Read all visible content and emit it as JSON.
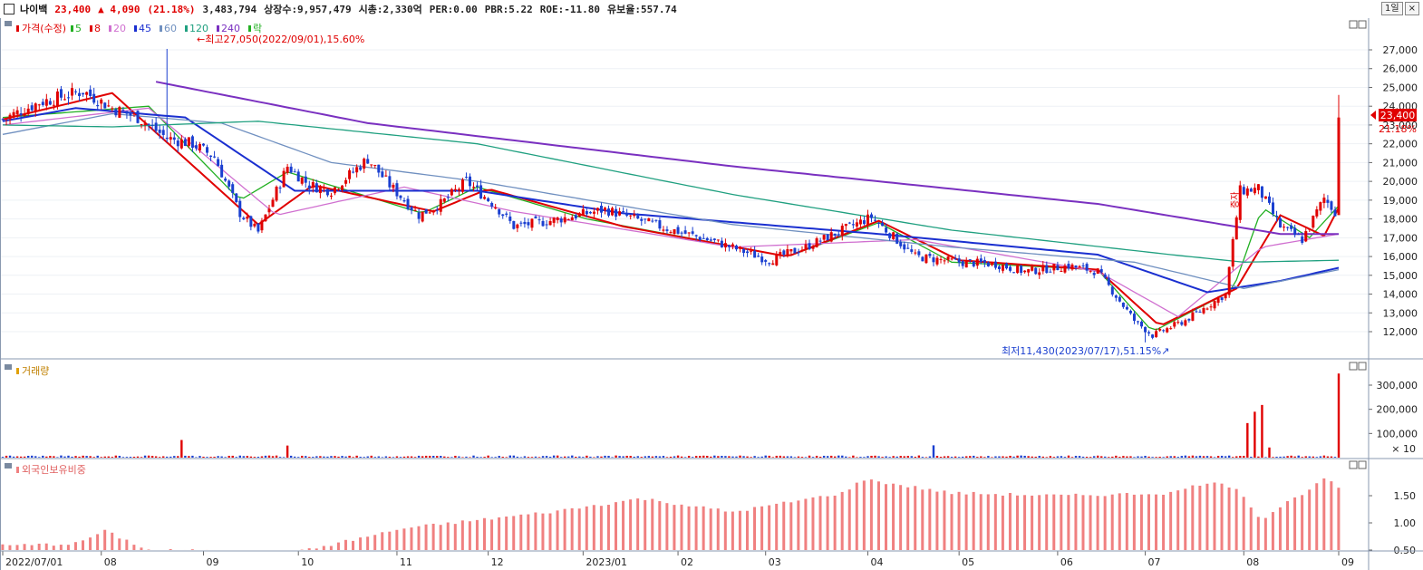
{
  "header": {
    "name": "나이백",
    "price": "23,400",
    "change": "▲  4,090",
    "change_pct": "(21.18%)",
    "volume": "3,483,794",
    "listed": "상장수:9,957,479",
    "mcap": "시총:2,330억",
    "per": "PER:0.00",
    "pbr": "PBR:5.22",
    "roe": "ROE:-11.80",
    "reserve": "유보율:557.74",
    "period_button": "1일",
    "close_button": "×"
  },
  "legend": {
    "price_label": "가격(수정)",
    "ma": [
      "5",
      "8",
      "20",
      "45",
      "60",
      "120",
      "240"
    ],
    "ma_colors": [
      "#22b022",
      "#e00000",
      "#d070d0",
      "#1a2fd0",
      "#7090c0",
      "#20a080",
      "#7a30c0"
    ],
    "extra": "락",
    "volume_label": "거래량",
    "foreign_label": "외국인보유비중"
  },
  "annotations": {
    "high": "최고27,050(2022/09/01),15.60%",
    "low": "최저11,430(2023/07/17),51.15%",
    "last_price": "23,400",
    "last_pct": "21.18%",
    "marker": "증자"
  },
  "price_axis": [
    "27,000",
    "26,000",
    "25,000",
    "24,000",
    "23,000",
    "22,000",
    "21,000",
    "20,000",
    "19,000",
    "18,000",
    "17,000",
    "16,000",
    "15,000",
    "14,000",
    "13,000",
    "12,000"
  ],
  "volume_axis": [
    "300,000",
    "200,000",
    "100,000",
    "× 10"
  ],
  "foreign_axis": [
    "1.50",
    "1.00",
    "0.50"
  ],
  "x_axis": [
    "2022/07/01",
    "08",
    "09",
    "10",
    "11",
    "12",
    "2023/01",
    "02",
    "03",
    "04",
    "05",
    "06",
    "07",
    "08",
    "09"
  ],
  "colors": {
    "up": "#e00000",
    "down": "#1a3fd0",
    "foreign": "#f08080",
    "grid": "#d8dde6"
  },
  "chart_data": {
    "type": "candlestick",
    "x_range": [
      "2022/07/01",
      "2023/09"
    ],
    "ylim": [
      11000,
      27800
    ],
    "high": {
      "value": 27050,
      "date": "2022/09/01"
    },
    "low": {
      "value": 11430,
      "date": "2023/07/17"
    },
    "close_keypoints": [
      [
        0,
        23300
      ],
      [
        10,
        24200
      ],
      [
        22,
        24800
      ],
      [
        30,
        23900
      ],
      [
        37,
        23400
      ],
      [
        45,
        22300
      ],
      [
        52,
        22000
      ],
      [
        58,
        21300
      ],
      [
        65,
        18300
      ],
      [
        70,
        17300
      ],
      [
        78,
        20800
      ],
      [
        84,
        19800
      ],
      [
        90,
        19500
      ],
      [
        100,
        21200
      ],
      [
        106,
        19800
      ],
      [
        114,
        18200
      ],
      [
        120,
        18800
      ],
      [
        127,
        20000
      ],
      [
        135,
        18700
      ],
      [
        140,
        17600
      ],
      [
        150,
        17900
      ],
      [
        165,
        18500
      ],
      [
        180,
        17600
      ],
      [
        195,
        16800
      ],
      [
        210,
        15800
      ],
      [
        220,
        16500
      ],
      [
        230,
        17400
      ],
      [
        238,
        18100
      ],
      [
        250,
        16000
      ],
      [
        262,
        15700
      ],
      [
        272,
        15600
      ],
      [
        280,
        15200
      ],
      [
        292,
        15500
      ],
      [
        300,
        15200
      ],
      [
        310,
        12600
      ],
      [
        315,
        11800
      ],
      [
        324,
        12600
      ],
      [
        335,
        14000
      ],
      [
        339,
        19500
      ],
      [
        344,
        19600
      ],
      [
        350,
        17600
      ],
      [
        356,
        16900
      ],
      [
        362,
        19100
      ],
      [
        365,
        18400
      ],
      [
        366,
        23400
      ]
    ],
    "volume_spikes": [
      [
        49,
        73000
      ],
      [
        78,
        50000
      ],
      [
        255,
        51000
      ],
      [
        341,
        143000
      ],
      [
        343,
        190000
      ],
      [
        345,
        218000
      ],
      [
        347,
        42000
      ],
      [
        366,
        348000
      ]
    ],
    "ma_series": {
      "5": [
        [
          0,
          23400
        ],
        [
          40,
          24000
        ],
        [
          65,
          19000
        ],
        [
          78,
          20500
        ],
        [
          115,
          18300
        ],
        [
          130,
          19700
        ],
        [
          160,
          18000
        ],
        [
          215,
          16000
        ],
        [
          240,
          17800
        ],
        [
          260,
          15700
        ],
        [
          300,
          15300
        ],
        [
          315,
          12000
        ],
        [
          337,
          14200
        ],
        [
          345,
          18600
        ],
        [
          358,
          17000
        ],
        [
          366,
          18700
        ]
      ],
      "8": [
        [
          0,
          23300
        ],
        [
          30,
          24700
        ],
        [
          70,
          17700
        ],
        [
          85,
          19800
        ],
        [
          118,
          18400
        ],
        [
          133,
          19600
        ],
        [
          170,
          17600
        ],
        [
          215,
          16000
        ],
        [
          240,
          17900
        ],
        [
          262,
          15800
        ],
        [
          300,
          15300
        ],
        [
          317,
          12300
        ],
        [
          338,
          14300
        ],
        [
          350,
          18200
        ],
        [
          362,
          17100
        ],
        [
          366,
          18600
        ]
      ],
      "20": [
        [
          0,
          23000
        ],
        [
          40,
          23900
        ],
        [
          75,
          18200
        ],
        [
          110,
          19700
        ],
        [
          140,
          18400
        ],
        [
          200,
          16500
        ],
        [
          250,
          16900
        ],
        [
          300,
          15200
        ],
        [
          322,
          12800
        ],
        [
          345,
          16500
        ],
        [
          366,
          17200
        ]
      ],
      "45": [
        [
          0,
          23200
        ],
        [
          20,
          23900
        ],
        [
          50,
          23400
        ],
        [
          80,
          19500
        ],
        [
          130,
          19500
        ],
        [
          170,
          18300
        ],
        [
          240,
          17200
        ],
        [
          300,
          16100
        ],
        [
          330,
          14100
        ],
        [
          350,
          14700
        ],
        [
          366,
          15400
        ]
      ],
      "60": [
        [
          0,
          22500
        ],
        [
          30,
          23600
        ],
        [
          60,
          23100
        ],
        [
          90,
          21000
        ],
        [
          130,
          20000
        ],
        [
          200,
          17700
        ],
        [
          260,
          16500
        ],
        [
          310,
          15700
        ],
        [
          340,
          14300
        ],
        [
          366,
          15300
        ]
      ],
      "120": [
        [
          0,
          23000
        ],
        [
          30,
          22900
        ],
        [
          70,
          23200
        ],
        [
          130,
          22000
        ],
        [
          200,
          19300
        ],
        [
          260,
          17400
        ],
        [
          320,
          16100
        ],
        [
          340,
          15700
        ],
        [
          366,
          15800
        ]
      ],
      "240": [
        [
          42,
          25300
        ],
        [
          100,
          23100
        ],
        [
          200,
          20800
        ],
        [
          300,
          18800
        ],
        [
          350,
          17200
        ],
        [
          366,
          17200
        ]
      ]
    },
    "foreign_keypoints": [
      [
        0,
        0.58
      ],
      [
        20,
        0.62
      ],
      [
        28,
        0.85
      ],
      [
        40,
        0.5
      ],
      [
        80,
        0.45
      ],
      [
        110,
        0.9
      ],
      [
        130,
        1.05
      ],
      [
        150,
        1.2
      ],
      [
        175,
        1.45
      ],
      [
        200,
        1.2
      ],
      [
        230,
        1.55
      ],
      [
        236,
        1.8
      ],
      [
        260,
        1.55
      ],
      [
        290,
        1.5
      ],
      [
        320,
        1.55
      ],
      [
        330,
        1.75
      ],
      [
        338,
        1.65
      ],
      [
        345,
        1.05
      ],
      [
        350,
        1.3
      ],
      [
        360,
        1.7
      ],
      [
        363,
        1.85
      ],
      [
        366,
        1.62
      ]
    ]
  }
}
